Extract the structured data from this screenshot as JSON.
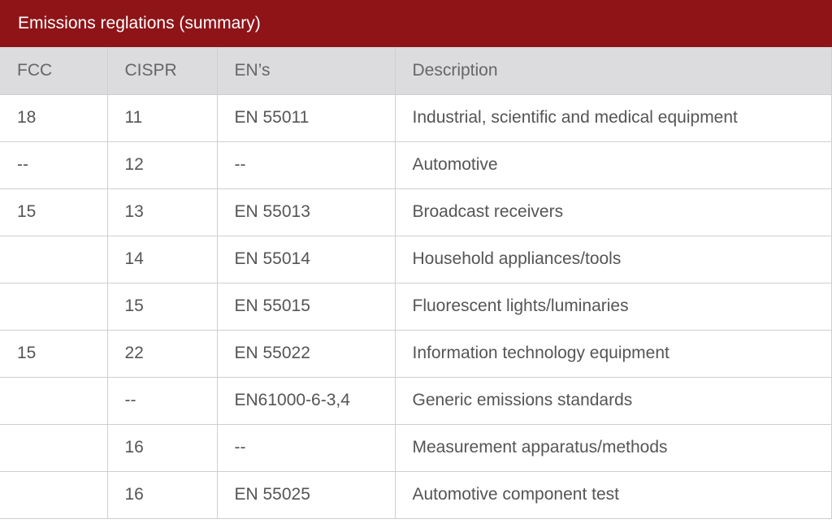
{
  "title": "Emissions reglations (summary)",
  "colors": {
    "title_bg": "#8e1418",
    "header_bg": "#dcdbde",
    "text": "#555555"
  },
  "columns": [
    "FCC",
    "CISPR",
    "EN’s",
    "Description"
  ],
  "rows": [
    [
      "18",
      "11",
      "EN 55011",
      "Industrial, scientific and medical equipment"
    ],
    [
      "--",
      "12",
      "--",
      "Automotive"
    ],
    [
      "15",
      "13",
      "EN 55013",
      "Broadcast receivers"
    ],
    [
      "",
      "14",
      "EN 55014",
      "Household appliances/tools"
    ],
    [
      "",
      "15",
      "EN 55015",
      "Fluorescent lights/luminaries"
    ],
    [
      "15",
      "22",
      "EN 55022",
      "Information technology equipment"
    ],
    [
      "",
      "--",
      "EN61000-6-3,4",
      "Generic emissions standards"
    ],
    [
      "",
      "16",
      "--",
      "Measurement apparatus/methods"
    ],
    [
      "",
      "16",
      "EN 55025",
      "Automotive component test"
    ]
  ]
}
